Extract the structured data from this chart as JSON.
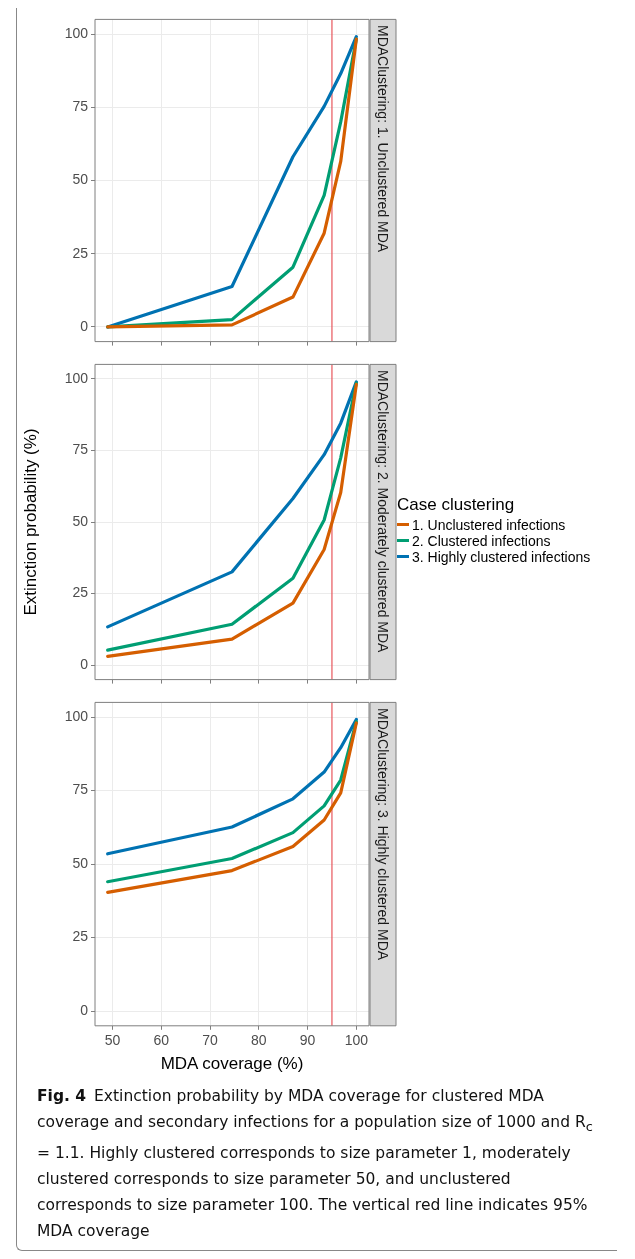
{
  "chart_data": [
    {
      "type": "line",
      "title": "MDAClustering: 1. Unclustered MDA",
      "x": [
        49,
        74.5,
        87,
        93.4,
        96.8,
        100
      ],
      "xlim": [
        46.4,
        102.6
      ],
      "xticks": [
        50,
        60,
        70,
        80,
        90,
        100
      ],
      "ylim": [
        -5,
        105
      ],
      "yticks": [
        0,
        25,
        50,
        75,
        100
      ],
      "grid": true,
      "tick_labels": "y",
      "marker": "none",
      "line_style": "solid",
      "ref_lines": [
        {
          "axis": "x",
          "value": 95,
          "color": "#e8565c"
        }
      ],
      "series": [
        {
          "color": "#d55e00",
          "values": [
            0,
            0.7,
            10.2,
            32,
            56.5,
            98.3
          ]
        },
        {
          "color": "#009e73",
          "values": [
            0,
            2.5,
            20.4,
            44.9,
            70,
            98.3
          ]
        },
        {
          "color": "#0072b2",
          "values": [
            0,
            13.8,
            58.1,
            75.3,
            86.5,
            99.1
          ]
        }
      ]
    },
    {
      "type": "line",
      "title": "MDAClustering: 2. Moderately clustered MDA",
      "ylabel": "Extinction probability (%)",
      "legend_title": "Case clustering",
      "legend": "right",
      "x": [
        49,
        74.5,
        87,
        93.4,
        96.8,
        100
      ],
      "xlim": [
        46.4,
        102.6
      ],
      "xticks": [
        50,
        60,
        70,
        80,
        90,
        100
      ],
      "ylim": [
        -5,
        105
      ],
      "yticks": [
        0,
        25,
        50,
        75,
        100
      ],
      "grid": true,
      "tick_labels": "y",
      "marker": "none",
      "line_style": "solid",
      "ref_lines": [
        {
          "axis": "x",
          "value": 95,
          "color": "#e8565c"
        }
      ],
      "series": [
        {
          "name": "1. Unclustered infections",
          "color": "#d55e00",
          "values": [
            3.1,
            9.1,
            21.7,
            40.4,
            60.3,
            98
          ]
        },
        {
          "name": "2. Clustered infections",
          "color": "#009e73",
          "values": [
            5.3,
            14.3,
            30.4,
            50.7,
            72.4,
            98.5
          ]
        },
        {
          "name": "3. Highly clustered infections",
          "color": "#0072b2",
          "values": [
            13.4,
            32.6,
            58.2,
            73.5,
            84.5,
            98.9
          ]
        }
      ]
    },
    {
      "type": "line",
      "title": "MDAClustering: 3. Highly clustered MDA",
      "xlabel": "MDA coverage (%)",
      "x": [
        49,
        74.5,
        87,
        93.4,
        96.8,
        100
      ],
      "xlim": [
        46.4,
        102.6
      ],
      "xticks": [
        50,
        60,
        70,
        80,
        90,
        100
      ],
      "ylim": [
        -5,
        105
      ],
      "yticks": [
        0,
        25,
        50,
        75,
        100
      ],
      "grid": true,
      "marker": "none",
      "line_style": "solid",
      "ref_lines": [
        {
          "axis": "x",
          "value": 95,
          "color": "#e8565c"
        }
      ],
      "annotations": [
        "Fig. 4",
        "Extinction probability by MDA coverage for clustered MDA coverage and secondary infections for a population size of 1000 and R$_{c}$ = 1.1. Highly clustered corresponds to size parameter 1, moderately clustered corresponds to size parameter 50, and unclustered corresponds to size parameter 100. The vertical red line indicates 95% MDA coverage"
      ],
      "series": [
        {
          "color": "#d55e00",
          "values": [
            40.4,
            47.8,
            56,
            65,
            74.2,
            98
          ]
        },
        {
          "color": "#009e73",
          "values": [
            44,
            51.9,
            60.7,
            69.8,
            78.6,
            98.5
          ]
        },
        {
          "color": "#0072b2",
          "values": [
            53.5,
            62.6,
            72.2,
            81.3,
            89.6,
            99.2
          ]
        }
      ]
    }
  ]
}
